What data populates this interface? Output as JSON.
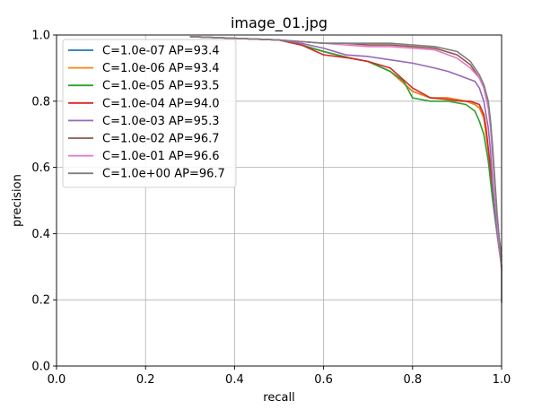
{
  "chart_data": {
    "type": "line",
    "title": "image_01.jpg",
    "xlabel": "recall",
    "ylabel": "precision",
    "xlim": [
      0.0,
      1.0
    ],
    "ylim": [
      0.0,
      1.0
    ],
    "xticks": [
      "0.0",
      "0.2",
      "0.4",
      "0.6",
      "0.8",
      "1.0"
    ],
    "yticks": [
      "0.0",
      "0.2",
      "0.4",
      "0.6",
      "0.8",
      "1.0"
    ],
    "grid": true,
    "legend_position": "top-left",
    "series": [
      {
        "name": "C=1.0e-07 AP=93.4",
        "color": "#1f77b4",
        "x": [
          0.3,
          0.4,
          0.5,
          0.55,
          0.6,
          0.63,
          0.66,
          0.7,
          0.75,
          0.8,
          0.84,
          0.88,
          0.92,
          0.94,
          0.95,
          0.96,
          0.965,
          0.97,
          0.975,
          0.98,
          0.985,
          0.99,
          0.995,
          1.0
        ],
        "y": [
          0.995,
          0.99,
          0.985,
          0.97,
          0.95,
          0.94,
          0.93,
          0.92,
          0.89,
          0.83,
          0.81,
          0.81,
          0.8,
          0.79,
          0.78,
          0.75,
          0.7,
          0.65,
          0.58,
          0.52,
          0.45,
          0.4,
          0.35,
          0.3
        ]
      },
      {
        "name": "C=1.0e-06 AP=93.4",
        "color": "#ff7f0e",
        "x": [
          0.3,
          0.4,
          0.5,
          0.55,
          0.6,
          0.63,
          0.66,
          0.7,
          0.75,
          0.8,
          0.84,
          0.88,
          0.92,
          0.94,
          0.95,
          0.96,
          0.965,
          0.97,
          0.975,
          0.98,
          0.985,
          0.99,
          0.995,
          1.0
        ],
        "y": [
          0.995,
          0.99,
          0.985,
          0.97,
          0.95,
          0.94,
          0.93,
          0.92,
          0.89,
          0.83,
          0.81,
          0.81,
          0.8,
          0.79,
          0.78,
          0.75,
          0.7,
          0.65,
          0.58,
          0.52,
          0.45,
          0.4,
          0.35,
          0.3
        ]
      },
      {
        "name": "C=1.0e-05 AP=93.5",
        "color": "#2ca02c",
        "x": [
          0.3,
          0.4,
          0.5,
          0.55,
          0.6,
          0.63,
          0.66,
          0.7,
          0.75,
          0.78,
          0.8,
          0.84,
          0.88,
          0.92,
          0.94,
          0.95,
          0.96,
          0.965,
          0.97,
          0.975,
          0.98,
          0.985,
          0.99,
          0.995,
          1.0
        ],
        "y": [
          0.995,
          0.99,
          0.985,
          0.97,
          0.95,
          0.94,
          0.93,
          0.92,
          0.89,
          0.86,
          0.81,
          0.8,
          0.8,
          0.79,
          0.77,
          0.74,
          0.7,
          0.66,
          0.62,
          0.56,
          0.5,
          0.45,
          0.4,
          0.35,
          0.3
        ]
      },
      {
        "name": "C=1.0e-04 AP=94.0",
        "color": "#d62728",
        "x": [
          0.3,
          0.4,
          0.5,
          0.55,
          0.6,
          0.63,
          0.66,
          0.7,
          0.75,
          0.8,
          0.84,
          0.88,
          0.91,
          0.93,
          0.95,
          0.96,
          0.965,
          0.97,
          0.975,
          0.98,
          0.985,
          0.99,
          0.995,
          1.0
        ],
        "y": [
          0.995,
          0.99,
          0.985,
          0.97,
          0.94,
          0.935,
          0.93,
          0.92,
          0.9,
          0.84,
          0.81,
          0.805,
          0.8,
          0.8,
          0.79,
          0.76,
          0.72,
          0.66,
          0.6,
          0.54,
          0.47,
          0.42,
          0.38,
          0.33
        ]
      },
      {
        "name": "C=1.0e-03 AP=95.3",
        "color": "#9467bd",
        "x": [
          0.3,
          0.4,
          0.5,
          0.55,
          0.6,
          0.65,
          0.7,
          0.75,
          0.8,
          0.85,
          0.88,
          0.9,
          0.92,
          0.94,
          0.95,
          0.96,
          0.97,
          0.975,
          0.98,
          0.985,
          0.99,
          0.995,
          1.0
        ],
        "y": [
          0.995,
          0.99,
          0.985,
          0.975,
          0.96,
          0.94,
          0.935,
          0.925,
          0.915,
          0.9,
          0.89,
          0.88,
          0.87,
          0.86,
          0.84,
          0.8,
          0.72,
          0.65,
          0.55,
          0.47,
          0.4,
          0.35,
          0.3
        ]
      },
      {
        "name": "C=1.0e-02 AP=96.7",
        "color": "#8c564b",
        "x": [
          0.3,
          0.4,
          0.5,
          0.55,
          0.6,
          0.65,
          0.7,
          0.75,
          0.8,
          0.85,
          0.9,
          0.93,
          0.95,
          0.96,
          0.97,
          0.975,
          0.98,
          0.985,
          0.99,
          0.995,
          1.0
        ],
        "y": [
          0.995,
          0.99,
          0.985,
          0.98,
          0.975,
          0.975,
          0.97,
          0.97,
          0.965,
          0.96,
          0.94,
          0.91,
          0.87,
          0.85,
          0.8,
          0.74,
          0.65,
          0.55,
          0.45,
          0.38,
          0.32
        ]
      },
      {
        "name": "C=1.0e-01 AP=96.6",
        "color": "#e377c2",
        "x": [
          0.3,
          0.4,
          0.5,
          0.55,
          0.6,
          0.65,
          0.7,
          0.75,
          0.8,
          0.85,
          0.9,
          0.93,
          0.95,
          0.96,
          0.97,
          0.975,
          0.98,
          0.985,
          0.99,
          0.995,
          1.0
        ],
        "y": [
          0.995,
          0.99,
          0.985,
          0.98,
          0.975,
          0.97,
          0.965,
          0.965,
          0.96,
          0.955,
          0.93,
          0.9,
          0.87,
          0.84,
          0.78,
          0.72,
          0.63,
          0.53,
          0.44,
          0.36,
          0.29
        ]
      },
      {
        "name": "C=1.0e+00 AP=96.7",
        "color": "#7f7f7f",
        "x": [
          0.3,
          0.4,
          0.5,
          0.55,
          0.6,
          0.65,
          0.7,
          0.75,
          0.8,
          0.85,
          0.9,
          0.93,
          0.95,
          0.96,
          0.97,
          0.975,
          0.98,
          0.985,
          0.99,
          0.995,
          1.0,
          1.0
        ],
        "y": [
          0.995,
          0.99,
          0.985,
          0.98,
          0.975,
          0.975,
          0.975,
          0.975,
          0.97,
          0.965,
          0.95,
          0.92,
          0.88,
          0.85,
          0.8,
          0.74,
          0.66,
          0.56,
          0.46,
          0.38,
          0.3,
          0.19
        ]
      }
    ]
  }
}
